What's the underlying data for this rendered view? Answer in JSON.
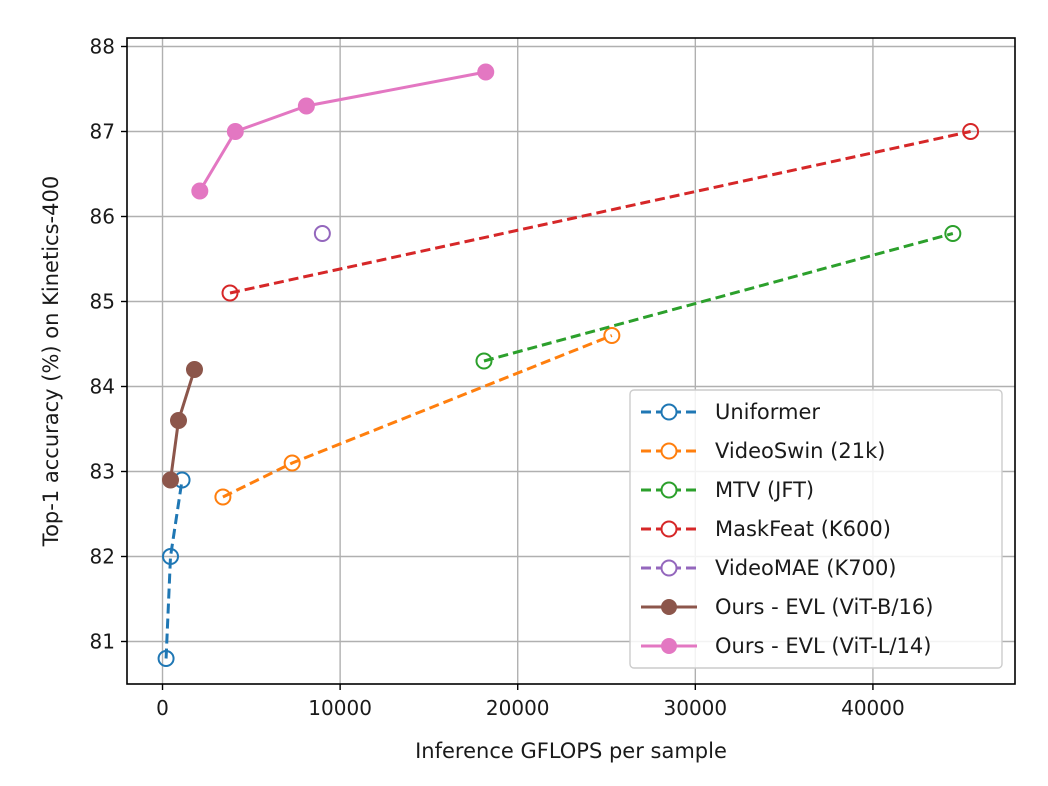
{
  "chart_data": {
    "type": "line",
    "title": "",
    "xlabel": "Inference GFLOPS per sample",
    "ylabel": "Top-1 accuracy (%) on Kinetics-400",
    "xlim": [
      -2000,
      48000
    ],
    "ylim": [
      80.5,
      88.1
    ],
    "x_ticks": [
      0,
      10000,
      20000,
      30000,
      40000
    ],
    "y_ticks": [
      81,
      82,
      83,
      84,
      85,
      86,
      87,
      88
    ],
    "grid": true,
    "legend_position": "lower-right",
    "series": [
      {
        "name": "Uniformer",
        "color": "#1f77b4",
        "style": "dashed",
        "marker": "open-circle",
        "x": [
          200,
          450,
          1100
        ],
        "y": [
          80.8,
          82.0,
          82.9
        ]
      },
      {
        "name": "VideoSwin (21k)",
        "color": "#ff7f0e",
        "style": "dashed",
        "marker": "open-circle",
        "x": [
          3400,
          7300,
          25300
        ],
        "y": [
          82.7,
          83.1,
          84.6
        ]
      },
      {
        "name": "MTV (JFT)",
        "color": "#2ca02c",
        "style": "dashed",
        "marker": "open-circle",
        "x": [
          18100,
          44500
        ],
        "y": [
          84.3,
          85.8
        ]
      },
      {
        "name": "MaskFeat (K600)",
        "color": "#d62728",
        "style": "dashed",
        "marker": "open-circle",
        "x": [
          3800,
          45500
        ],
        "y": [
          85.1,
          87.0
        ]
      },
      {
        "name": "VideoMAE (K700)",
        "color": "#9467bd",
        "style": "none",
        "marker": "open-circle",
        "x": [
          9000
        ],
        "y": [
          85.8
        ]
      },
      {
        "name": "Ours - EVL (ViT-B/16)",
        "color": "#8c564b",
        "style": "solid",
        "marker": "filled-circle",
        "x": [
          450,
          900,
          1800
        ],
        "y": [
          82.9,
          83.6,
          84.2
        ]
      },
      {
        "name": "Ours - EVL (ViT-L/14)",
        "color": "#e377c2",
        "style": "solid",
        "marker": "filled-circle",
        "x": [
          2100,
          4100,
          8100,
          18200
        ],
        "y": [
          86.3,
          87.0,
          87.3,
          87.7
        ]
      }
    ]
  }
}
